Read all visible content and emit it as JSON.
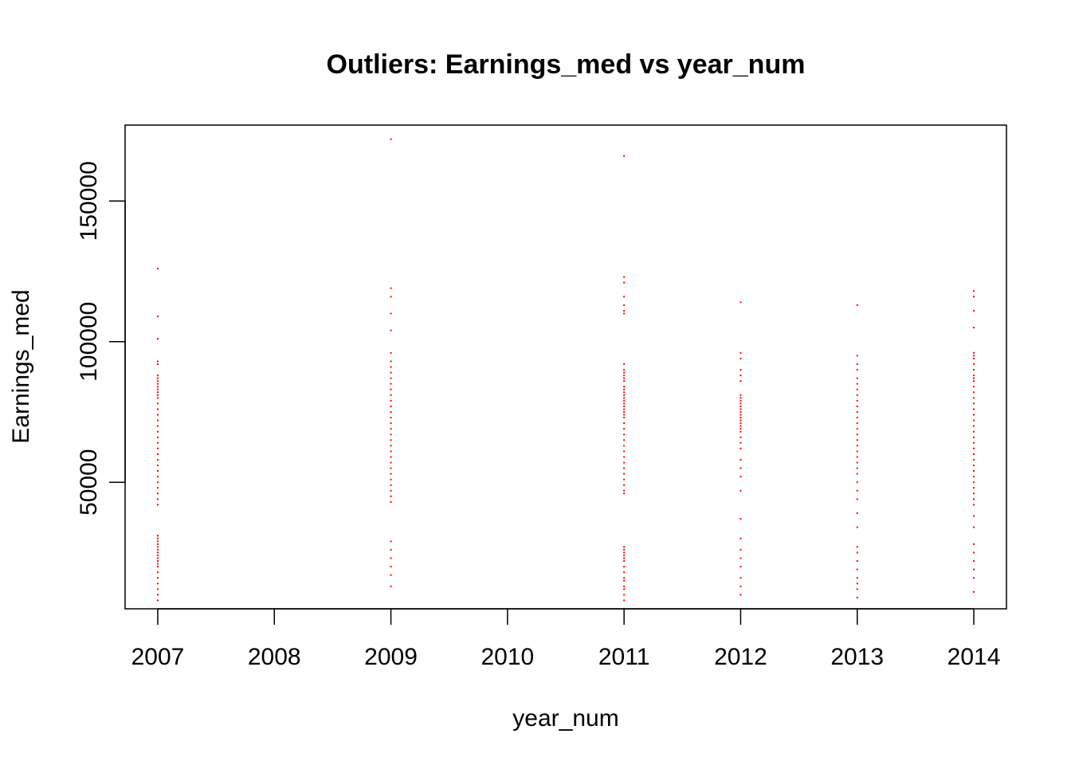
{
  "chart_data": {
    "type": "scatter",
    "title": "Outliers: Earnings_med vs year_num",
    "xlabel": "year_num",
    "ylabel": "Earnings_med",
    "xlim": [
      2006.72,
      2014.28
    ],
    "ylim": [
      5000,
      177000
    ],
    "x_ticks": [
      2007,
      2008,
      2009,
      2010,
      2011,
      2012,
      2013,
      2014
    ],
    "y_ticks": [
      50000,
      100000,
      150000
    ],
    "point_color": "#ff0000",
    "grid": false,
    "legend": "none",
    "x": [
      2007,
      2007,
      2007,
      2007,
      2007,
      2007,
      2007,
      2007,
      2007,
      2007,
      2007,
      2007,
      2007,
      2007,
      2007,
      2007,
      2007,
      2007,
      2007,
      2007,
      2007,
      2007,
      2007,
      2007,
      2007,
      2007,
      2007,
      2007,
      2007,
      2007,
      2007,
      2007,
      2007,
      2007,
      2007,
      2007,
      2007,
      2007,
      2007,
      2007,
      2007,
      2007,
      2007,
      2007,
      2007,
      2007,
      2007,
      2007,
      2007,
      2007,
      2007,
      2009,
      2009,
      2009,
      2009,
      2009,
      2009,
      2009,
      2009,
      2009,
      2009,
      2009,
      2009,
      2009,
      2009,
      2009,
      2009,
      2009,
      2009,
      2009,
      2009,
      2009,
      2009,
      2009,
      2009,
      2009,
      2009,
      2009,
      2009,
      2009,
      2009,
      2009,
      2009,
      2009,
      2009,
      2009,
      2009,
      2009,
      2009,
      2011,
      2011,
      2011,
      2011,
      2011,
      2011,
      2011,
      2011,
      2011,
      2011,
      2011,
      2011,
      2011,
      2011,
      2011,
      2011,
      2011,
      2011,
      2011,
      2011,
      2011,
      2011,
      2011,
      2011,
      2011,
      2011,
      2011,
      2011,
      2011,
      2011,
      2011,
      2011,
      2011,
      2011,
      2011,
      2011,
      2011,
      2011,
      2011,
      2011,
      2011,
      2011,
      2011,
      2011,
      2011,
      2011,
      2011,
      2011,
      2011,
      2011,
      2011,
      2011,
      2011,
      2012,
      2012,
      2012,
      2012,
      2012,
      2012,
      2012,
      2012,
      2012,
      2012,
      2012,
      2012,
      2012,
      2012,
      2012,
      2012,
      2012,
      2012,
      2012,
      2012,
      2012,
      2012,
      2012,
      2012,
      2012,
      2012,
      2012,
      2012,
      2012,
      2012,
      2012,
      2012,
      2012,
      2012,
      2012,
      2013,
      2013,
      2013,
      2013,
      2013,
      2013,
      2013,
      2013,
      2013,
      2013,
      2013,
      2013,
      2013,
      2013,
      2013,
      2013,
      2013,
      2013,
      2013,
      2013,
      2013,
      2013,
      2013,
      2013,
      2013,
      2013,
      2013,
      2013,
      2013,
      2013,
      2013,
      2013,
      2013,
      2013,
      2013,
      2014,
      2014,
      2014,
      2014,
      2014,
      2014,
      2014,
      2014,
      2014,
      2014,
      2014,
      2014,
      2014,
      2014,
      2014,
      2014,
      2014,
      2014,
      2014,
      2014,
      2014,
      2014,
      2014,
      2014,
      2014,
      2014,
      2014,
      2014,
      2014,
      2014,
      2014,
      2014,
      2014,
      2014,
      2014,
      2014,
      2014,
      2014,
      2014,
      2014,
      2014,
      2014
    ],
    "y": [
      126000,
      109000,
      101000,
      93000,
      92000,
      88000,
      87000,
      86000,
      85000,
      84000,
      83000,
      82000,
      81000,
      80000,
      78000,
      76000,
      74000,
      72000,
      70000,
      68000,
      66000,
      64000,
      62000,
      60000,
      58000,
      56000,
      54000,
      52000,
      50000,
      48000,
      46000,
      44000,
      42000,
      31000,
      30000,
      29000,
      28000,
      27000,
      26000,
      25000,
      24000,
      23000,
      22000,
      21000,
      20000,
      18000,
      16000,
      14000,
      12000,
      10000,
      8000,
      172000,
      119000,
      116000,
      110000,
      104000,
      96000,
      93000,
      91000,
      89000,
      87000,
      85000,
      83000,
      81000,
      79000,
      77000,
      75000,
      73000,
      71000,
      69000,
      67000,
      65000,
      63000,
      61000,
      59000,
      57000,
      55000,
      53000,
      51000,
      49000,
      47000,
      45000,
      43000,
      29000,
      26000,
      23000,
      20000,
      17000,
      13000,
      166000,
      123000,
      121000,
      116000,
      113000,
      111000,
      110000,
      92000,
      90000,
      89000,
      88000,
      87000,
      86000,
      84000,
      83000,
      82000,
      81000,
      80000,
      79000,
      78000,
      77000,
      76000,
      75000,
      74000,
      73000,
      71000,
      69000,
      67000,
      65000,
      63000,
      61000,
      59000,
      57000,
      55000,
      53000,
      51000,
      49000,
      47000,
      46000,
      27000,
      26000,
      25000,
      24000,
      23000,
      22000,
      20000,
      18000,
      16000,
      15000,
      13000,
      12000,
      10000,
      8000,
      114000,
      96000,
      94000,
      90000,
      88000,
      86000,
      81000,
      80000,
      79000,
      78000,
      77000,
      76000,
      75000,
      74000,
      73000,
      72000,
      71000,
      70000,
      69000,
      68000,
      66000,
      64000,
      62000,
      58000,
      55000,
      52000,
      47000,
      37000,
      30000,
      26000,
      23000,
      20000,
      16000,
      13000,
      10000,
      113000,
      95000,
      92000,
      90000,
      87000,
      85000,
      83000,
      81000,
      79000,
      77000,
      75000,
      73000,
      71000,
      69000,
      67000,
      65000,
      63000,
      61000,
      59000,
      57000,
      55000,
      53000,
      50000,
      47000,
      44000,
      39000,
      34000,
      27000,
      25000,
      22000,
      19000,
      16000,
      14000,
      12000,
      9000,
      118000,
      116000,
      111000,
      105000,
      96000,
      95000,
      94000,
      92000,
      90000,
      88000,
      87000,
      86000,
      84000,
      82000,
      80000,
      78000,
      76000,
      74000,
      72000,
      70000,
      68000,
      66000,
      64000,
      62000,
      60000,
      58000,
      56000,
      54000,
      52000,
      50000,
      48000,
      46000,
      44000,
      42000,
      38000,
      34000,
      28000,
      25000,
      22000,
      19000,
      16000,
      11000
    ]
  }
}
